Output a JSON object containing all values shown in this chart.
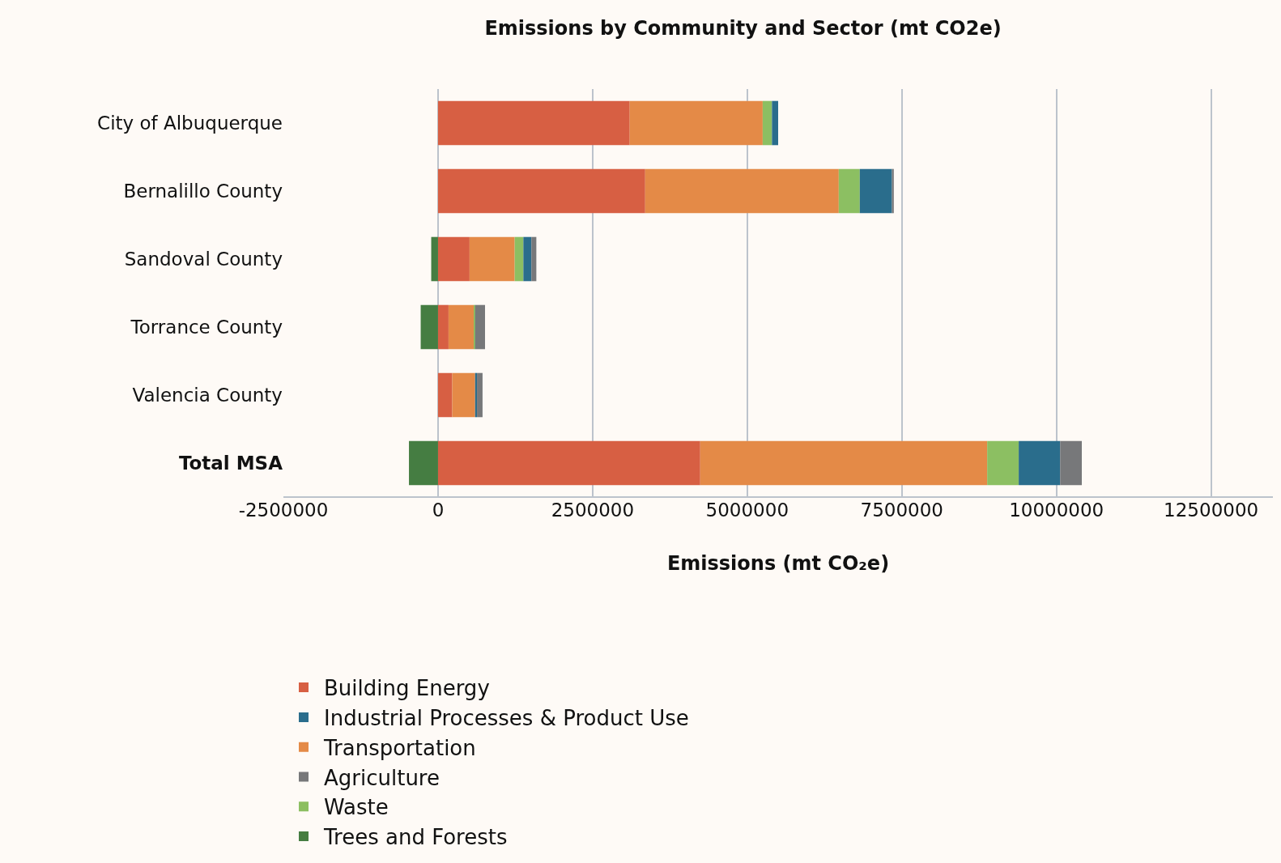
{
  "chart_data": {
    "type": "bar",
    "orientation": "horizontal",
    "stacked": true,
    "title": "Emissions by Community and Sector (mt CO2e)",
    "xlabel": "Emissions (mt CO₂e)",
    "categories": [
      "City of Albuquerque",
      "Bernalillo County",
      "Sandoval County",
      "Torrance County",
      "Valencia County",
      "Total MSA"
    ],
    "series": [
      {
        "name": "Building Energy",
        "color": "#d75f43",
        "values": [
          3100000,
          3350000,
          510000,
          170000,
          230000,
          4240000
        ]
      },
      {
        "name": "Transportation",
        "color": "#e48a47",
        "values": [
          2150000,
          3130000,
          730000,
          410000,
          370000,
          4640000
        ]
      },
      {
        "name": "Waste",
        "color": "#8cbf62",
        "values": [
          150000,
          340000,
          140000,
          20000,
          null,
          510000
        ]
      },
      {
        "name": "Industrial Processes & Product Use",
        "color": "#2a6d8c",
        "values": [
          100000,
          520000,
          130000,
          null,
          30000,
          670000
        ]
      },
      {
        "name": "Agriculture",
        "color": "#77787a",
        "values": [
          null,
          30000,
          80000,
          160000,
          90000,
          350000
        ]
      },
      {
        "name": "Trees and Forests",
        "color": "#457d42",
        "values": [
          null,
          null,
          -110000,
          -280000,
          null,
          -470000
        ]
      }
    ],
    "xlim": [
      -2500000,
      13500000
    ],
    "xticks": [
      -2500000,
      0,
      2500000,
      5000000,
      7500000,
      10000000,
      12500000
    ],
    "grid": "x",
    "legend": "bottom"
  }
}
